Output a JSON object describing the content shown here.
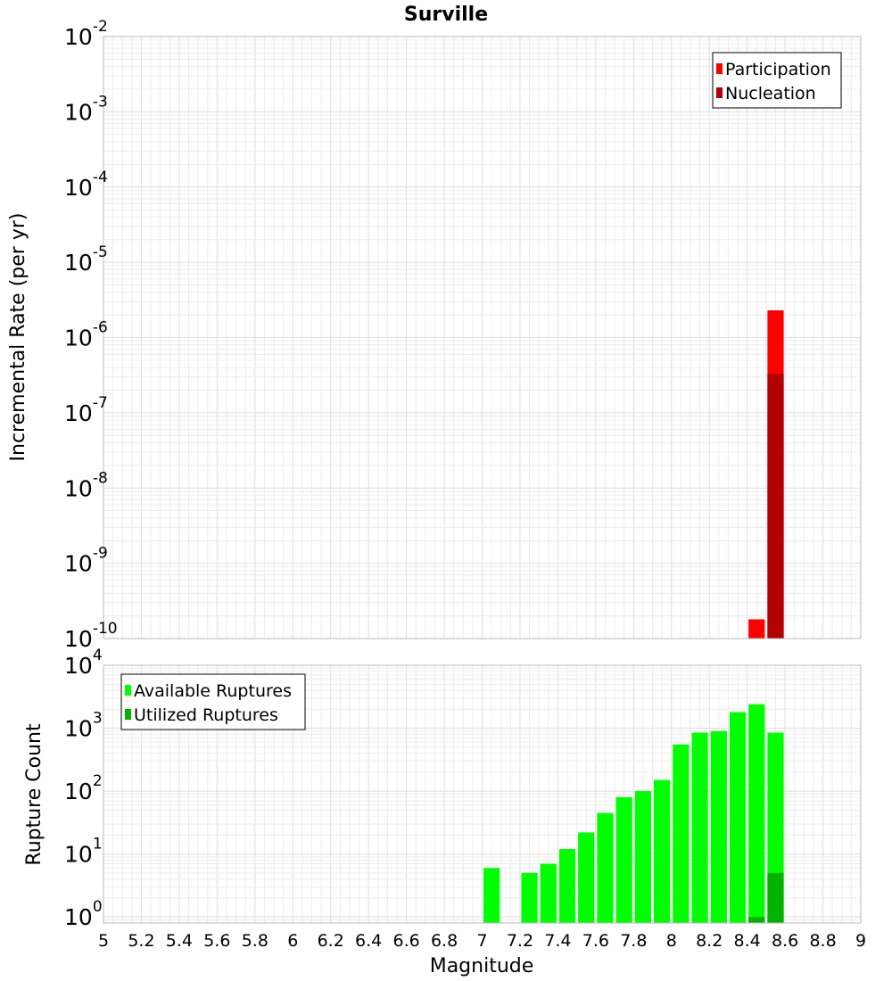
{
  "chart_data": [
    {
      "type": "bar",
      "title": "Surville",
      "xlabel": "",
      "ylabel": "Incremental Rate (per yr)",
      "xlim": [
        5,
        9
      ],
      "ylim": [
        1e-10,
        0.01
      ],
      "yscale": "log",
      "y_ticks": [
        {
          "base": "10",
          "exp": "-10"
        },
        {
          "base": "10",
          "exp": "-9"
        },
        {
          "base": "10",
          "exp": "-8"
        },
        {
          "base": "10",
          "exp": "-7"
        },
        {
          "base": "10",
          "exp": "-6"
        },
        {
          "base": "10",
          "exp": "-5"
        },
        {
          "base": "10",
          "exp": "-4"
        },
        {
          "base": "10",
          "exp": "-3"
        },
        {
          "base": "10",
          "exp": "-2"
        }
      ],
      "grid": true,
      "legend": "top-right",
      "bar_width": 0.1,
      "series": [
        {
          "name": "Participation",
          "color": "#ff0000",
          "x": [
            8.45,
            8.55
          ],
          "values": [
            1.8e-10,
            2.3e-06
          ]
        },
        {
          "name": "Nucleation",
          "color": "#b30000",
          "x": [
            8.55
          ],
          "values": [
            3.3e-07
          ]
        }
      ]
    },
    {
      "type": "bar",
      "title": "",
      "xlabel": "Magnitude",
      "ylabel": "Rupture Count",
      "xlim": [
        5,
        9
      ],
      "ylim": [
        0.8,
        10000
      ],
      "yscale": "log",
      "x_ticks": [
        "5",
        "5.2",
        "5.4",
        "5.6",
        "5.8",
        "6",
        "6.2",
        "6.4",
        "6.6",
        "6.8",
        "7",
        "7.2",
        "7.4",
        "7.6",
        "7.8",
        "8",
        "8.2",
        "8.4",
        "8.6",
        "8.8",
        "9"
      ],
      "y_ticks": [
        {
          "base": "10",
          "exp": "0"
        },
        {
          "base": "10",
          "exp": "1"
        },
        {
          "base": "10",
          "exp": "2"
        },
        {
          "base": "10",
          "exp": "3"
        },
        {
          "base": "10",
          "exp": "4"
        }
      ],
      "grid": true,
      "legend": "top-left",
      "bar_width": 0.1,
      "series": [
        {
          "name": "Available Ruptures",
          "color": "#00ff00",
          "x": [
            7.05,
            7.25,
            7.35,
            7.45,
            7.55,
            7.65,
            7.75,
            7.85,
            7.95,
            8.05,
            8.15,
            8.25,
            8.35,
            8.45,
            8.55
          ],
          "values": [
            6,
            5,
            7,
            12,
            22,
            45,
            80,
            100,
            150,
            550,
            850,
            900,
            1800,
            2400,
            850
          ]
        },
        {
          "name": "Utilized Ruptures",
          "color": "#00b300",
          "x": [
            8.45,
            8.55
          ],
          "values": [
            1,
            5
          ]
        }
      ]
    }
  ]
}
